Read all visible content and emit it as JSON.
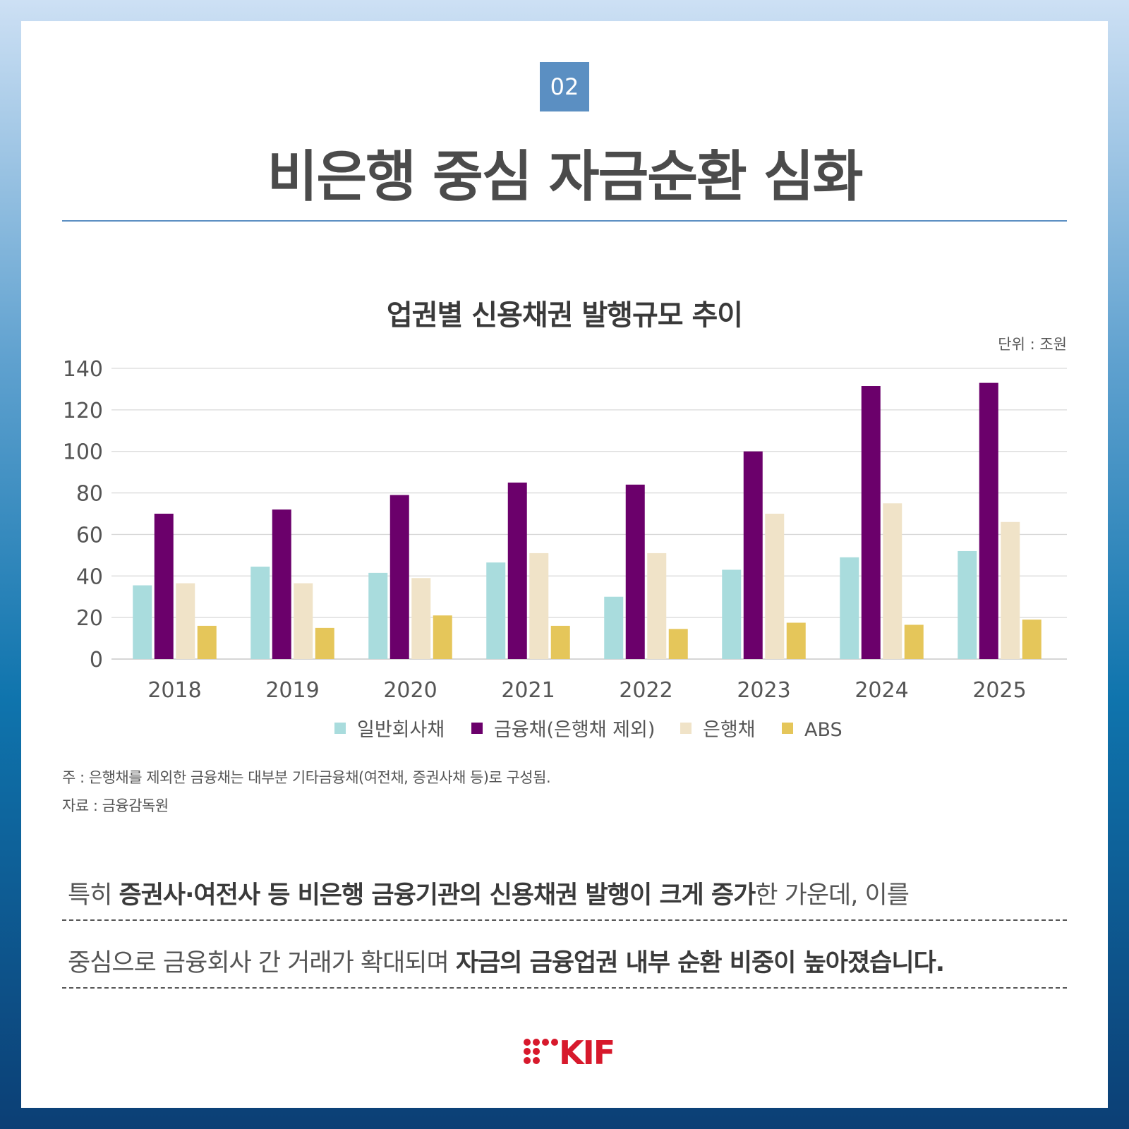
{
  "badge": "02",
  "title": "비은행 중심 자금순환 심화",
  "unit_label": "단위 : 조원",
  "chart_data": {
    "type": "bar",
    "title": "업권별 신용채권 발행규모 추이",
    "categories": [
      "2018",
      "2019",
      "2020",
      "2021",
      "2022",
      "2023",
      "2024",
      "2025"
    ],
    "series": [
      {
        "name": "일반회사채",
        "color": "#a9dcdd",
        "values": [
          35.5,
          44.5,
          41.5,
          46.5,
          30,
          43,
          49,
          52
        ]
      },
      {
        "name": "금융채(은행채 제외)",
        "color": "#6b006b",
        "values": [
          70,
          72,
          79,
          85,
          84,
          100,
          131.5,
          133
        ]
      },
      {
        "name": "은행채",
        "color": "#f0e3c8",
        "values": [
          36.5,
          36.5,
          39,
          51,
          51,
          70,
          75,
          66
        ]
      },
      {
        "name": "ABS",
        "color": "#e5c65a",
        "values": [
          16,
          15,
          21,
          16,
          14.5,
          17.5,
          16.5,
          19
        ]
      }
    ],
    "y_ticks": [
      "0",
      "20",
      "40",
      "60",
      "80",
      "100",
      "120",
      "140"
    ],
    "ylim": [
      0,
      140
    ],
    "grid": true,
    "legend_position": "bottom-center"
  },
  "notes": {
    "note": "주 : 은행채를 제외한 금융채는 대부분 기타금융채(여전채, 증권사채 등)로 구성됨.",
    "source": "자료 : 금융감독원"
  },
  "body": {
    "line1": {
      "a": "특히 ",
      "b": "증권사·여전사 등 비은행 금융기관의 신용채권 발행이 크게 증가",
      "c": "한 가운데, 이를"
    },
    "line2": {
      "a": "중심으로 금융회사 간 거래가 확대되며 ",
      "b": "자금의 금융업권 내부 순환 비중이 높아졌습니다."
    }
  },
  "logo": {
    "text": "KIF",
    "color": "#d7192c"
  }
}
